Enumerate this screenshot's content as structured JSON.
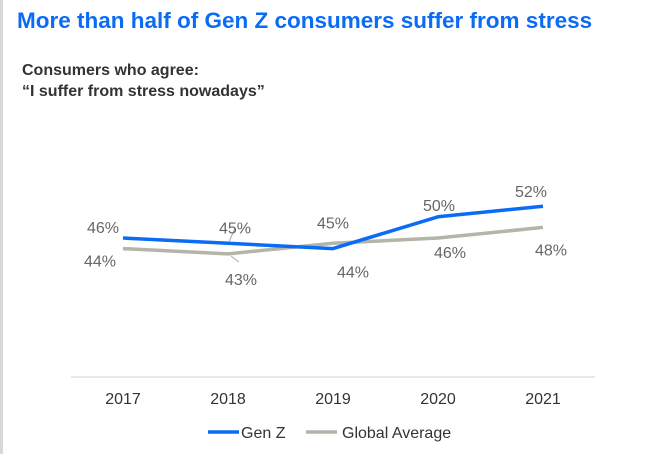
{
  "title": "More than half of Gen Z consumers suffer from stress",
  "subtitle_line1": "Consumers who agree:",
  "subtitle_line2": "“I suffer from stress nowadays”",
  "chart_data": {
    "type": "line",
    "categories": [
      "2017",
      "2018",
      "2019",
      "2020",
      "2021"
    ],
    "series": [
      {
        "name": "Gen Z",
        "values": [
          46,
          45,
          44,
          50,
          52
        ],
        "labels": [
          "46%",
          "45%",
          "44%",
          "50%",
          "52%"
        ],
        "color": "#0a6cf5"
      },
      {
        "name": "Global Average",
        "values": [
          44,
          43,
          45,
          46,
          48
        ],
        "labels": [
          "44%",
          "43%",
          "45%",
          "46%",
          "48%"
        ],
        "color": "#b4b4a8"
      }
    ],
    "legend": "bottom",
    "grid": false
  }
}
